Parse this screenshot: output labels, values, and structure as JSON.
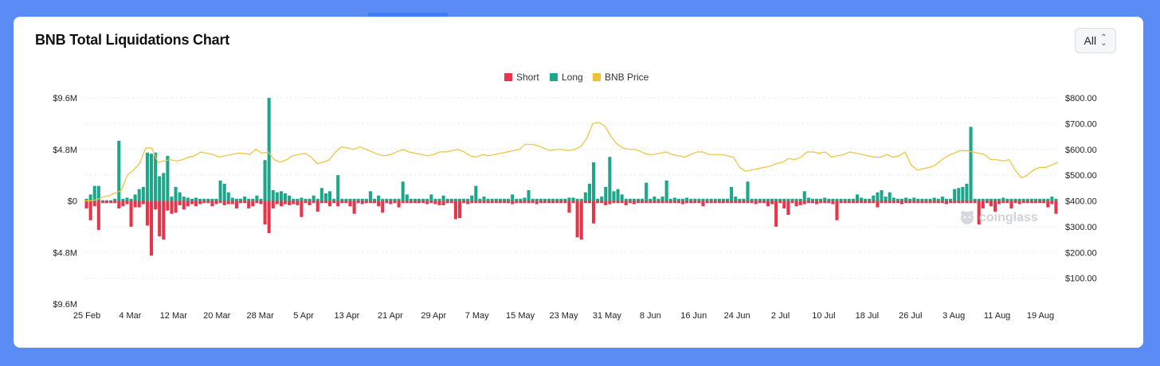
{
  "title": "BNB Total Liquidations Chart",
  "range_selector": {
    "value": "All"
  },
  "watermark": "coinglass",
  "chart_data": {
    "type": "bar",
    "title": "BNB Total Liquidations Chart",
    "legend": {
      "placement": "top-center",
      "entries": [
        "Short",
        "Long",
        "BNB Price"
      ]
    },
    "colors": {
      "short": "#e8344a",
      "long": "#1ea68b",
      "price": "#ecc236"
    },
    "left_axis": {
      "ticks": [
        9.6,
        4.8,
        0,
        -4.8,
        -9.6
      ],
      "tick_labels": [
        "$9.6M",
        "$4.8M",
        "$0",
        "$4.8M",
        "$9.6M"
      ],
      "range": [
        -9.6,
        9.6
      ],
      "unit": "M USD"
    },
    "right_axis": {
      "ticks": [
        800,
        700,
        600,
        500,
        400,
        300,
        200,
        100
      ],
      "tick_labels": [
        "$800.00",
        "$700.00",
        "$600.00",
        "$500.00",
        "$400.00",
        "$300.00",
        "$200.00",
        "$100.00"
      ],
      "range": [
        0,
        800
      ]
    },
    "x_axis": {
      "tick_labels": [
        "25 Feb",
        "4 Mar",
        "12 Mar",
        "20 Mar",
        "28 Mar",
        "5 Apr",
        "13 Apr",
        "21 Apr",
        "29 Apr",
        "7 May",
        "15 May",
        "23 May",
        "31 May",
        "8 Jun",
        "16 Jun",
        "24 Jun",
        "2 Jul",
        "10 Jul",
        "18 Jul",
        "26 Jul",
        "3 Aug",
        "11 Aug",
        "19 Aug"
      ]
    },
    "grid": true,
    "series": [
      {
        "name": "Long",
        "values": [
          0.2,
          0.6,
          1.4,
          1.4,
          0,
          0,
          0,
          0.2,
          5.6,
          0.2,
          0.3,
          0.2,
          0.6,
          1.1,
          1.3,
          4.5,
          4.4,
          4.5,
          2.3,
          2.6,
          4.2,
          0.4,
          1.3,
          0.8,
          0.4,
          0.3,
          0.2,
          0.3,
          0.2,
          0.2,
          0.2,
          0.2,
          0.2,
          1.9,
          1.6,
          0.8,
          0.3,
          0.2,
          0.2,
          0.4,
          0.2,
          0.2,
          0.5,
          0.2,
          3.8,
          9.6,
          1.0,
          0.8,
          0.9,
          0.7,
          0.5,
          0.2,
          0.2,
          0.3,
          0.2,
          0.2,
          0.5,
          0.2,
          1.2,
          0.7,
          0.9,
          0.2,
          2.4,
          0.2,
          0.2,
          0.2,
          0.2,
          0.2,
          0.2,
          0.2,
          0.9,
          0.2,
          0.5,
          0.2,
          0.2,
          0.2,
          0.2,
          0.2,
          1.8,
          0.6,
          0.2,
          0.2,
          0.2,
          0.2,
          0.2,
          0.6,
          0.2,
          0.2,
          0.5,
          0.2,
          0.2,
          0.2,
          0.2,
          0.2,
          0.2,
          0.5,
          1.4,
          0.2,
          0.4,
          0.2,
          0.2,
          0.2,
          0.2,
          0.2,
          0.2,
          0.6,
          0.2,
          0.2,
          0.3,
          1.0,
          0.2,
          0.2,
          0.2,
          0.2,
          0.2,
          0.2,
          0.2,
          0.2,
          0.2,
          0.3,
          0.3,
          0.2,
          0.2,
          0.8,
          1.6,
          3.6,
          0.2,
          0.4,
          1.3,
          4.1,
          0.9,
          1.1,
          0.6,
          0.2,
          0.2,
          0.2,
          0.2,
          0.2,
          1.7,
          0.2,
          0.4,
          0.2,
          0.4,
          1.9,
          0.2,
          0.3,
          0.2,
          0.2,
          0.3,
          0.2,
          0.2,
          0.2,
          0.2,
          0.2,
          0.2,
          0.2,
          0.2,
          0.2,
          0.2,
          1.3,
          0.4,
          0.2,
          0.2,
          1.8,
          0.2,
          0.2,
          0.2,
          0.2,
          0.2,
          0.2,
          0.2,
          0.2,
          0.2,
          0.2,
          0.2,
          0.2,
          0.2,
          0.9,
          0.3,
          0.2,
          0.2,
          0.2,
          0.3,
          0.2,
          0.2,
          0.2,
          0.2,
          0.2,
          0.2,
          0.2,
          0.6,
          0.3,
          0.2,
          0.2,
          0.5,
          0.8,
          1.0,
          0.4,
          0.8,
          0.3,
          0.2,
          0.2,
          0.3,
          0.2,
          0.3,
          0.2,
          0.2,
          0.2,
          0.2,
          0.3,
          0.2,
          0.4,
          0.2,
          0.2,
          1.1,
          1.2,
          1.3,
          1.6,
          6.9,
          0.2,
          0.2,
          0.2,
          0.2,
          0.2,
          0.2,
          0.2,
          0.3,
          0.2,
          0.2,
          0.2,
          0.2,
          0.2,
          0.2,
          0.2,
          0.2,
          0.2,
          0.2,
          0.2,
          0.4,
          0.2
        ]
      },
      {
        "name": "Short",
        "values": [
          -0.7,
          -1.8,
          -0.5,
          -2.7,
          -0.2,
          -0.2,
          -0.2,
          -0.2,
          -0.7,
          -0.5,
          -0.3,
          -2.4,
          -0.6,
          -0.6,
          -0.3,
          -2.3,
          -5.1,
          -0.8,
          -3.3,
          -3.6,
          -0.9,
          -1.2,
          -1.1,
          -0.4,
          -0.8,
          -0.5,
          -0.3,
          -0.5,
          -0.3,
          -0.2,
          -0.2,
          -0.5,
          -0.3,
          -0.2,
          -0.4,
          -0.3,
          -0.3,
          -0.7,
          -0.2,
          -0.2,
          -0.7,
          -0.5,
          -0.2,
          -0.3,
          -2.2,
          -3.0,
          -0.7,
          -0.3,
          -0.5,
          -0.3,
          -0.4,
          -0.3,
          -0.4,
          -1.5,
          -0.2,
          -0.4,
          -0.2,
          -1.0,
          -0.2,
          -0.2,
          -0.5,
          -0.2,
          -0.5,
          -0.2,
          -0.2,
          -0.5,
          -1.2,
          -0.2,
          -0.3,
          -0.2,
          -0.2,
          -0.2,
          -0.5,
          -1.1,
          -0.2,
          -0.3,
          -0.2,
          -0.6,
          -0.2,
          -0.2,
          -0.2,
          -0.2,
          -0.2,
          -0.2,
          -0.3,
          -0.2,
          -0.3,
          -0.4,
          -0.4,
          -0.2,
          -0.2,
          -1.7,
          -1.6,
          -0.2,
          -0.3,
          -0.2,
          -0.2,
          -0.2,
          -0.2,
          -0.2,
          -0.2,
          -0.2,
          -0.2,
          -0.2,
          -0.2,
          -0.3,
          -0.2,
          -0.2,
          -0.2,
          -0.2,
          -0.2,
          -0.3,
          -0.2,
          -0.2,
          -0.2,
          -0.2,
          -0.2,
          -0.2,
          -0.2,
          -1.1,
          -0.2,
          -3.4,
          -3.6,
          -0.2,
          -0.2,
          -2.1,
          -0.2,
          -0.2,
          -0.4,
          -0.3,
          -0.2,
          -0.2,
          -0.2,
          -0.4,
          -0.2,
          -0.3,
          -0.2,
          -0.2,
          -0.2,
          -0.2,
          -0.2,
          -0.2,
          -0.2,
          -0.2,
          -0.2,
          -0.2,
          -0.2,
          -0.3,
          -0.2,
          -0.2,
          -0.2,
          -0.2,
          -0.5,
          -0.2,
          -0.2,
          -0.2,
          -0.2,
          -0.2,
          -0.2,
          -0.2,
          -0.2,
          -0.2,
          -0.2,
          -0.2,
          -0.2,
          -0.3,
          -0.2,
          -0.2,
          -0.5,
          -0.3,
          -2.4,
          -0.2,
          -0.7,
          -1.3,
          -0.2,
          -0.5,
          -0.4,
          -0.3,
          -0.2,
          -0.2,
          -0.3,
          -0.2,
          -0.2,
          -0.2,
          -0.3,
          -1.8,
          -0.2,
          -0.2,
          -0.2,
          -0.2,
          -0.2,
          -0.2,
          -0.2,
          -0.2,
          -0.2,
          -0.6,
          -0.2,
          -0.2,
          -0.2,
          -0.2,
          -0.2,
          -0.3,
          -0.2,
          -0.2,
          -0.2,
          -0.2,
          -0.2,
          -0.2,
          -0.2,
          -0.2,
          -0.2,
          -0.2,
          -0.3,
          -0.2,
          -0.2,
          -0.2,
          -0.2,
          -0.2,
          -0.2,
          -0.2,
          -2.2,
          -0.7,
          -0.2,
          -0.5,
          -1.0,
          -0.3,
          -0.2,
          -0.2,
          -0.7,
          -0.2,
          -0.3,
          -0.2,
          -0.2,
          -0.2,
          -0.2,
          -0.2,
          -0.2,
          -0.6,
          -0.3,
          -1.2,
          -0.4,
          -0.3,
          -0.2,
          -0.2,
          -0.3
        ]
      },
      {
        "name": "BNB Price",
        "values": [
          400,
          400,
          405,
          415,
          420,
          430,
          440,
          500,
          520,
          545,
          605,
          605,
          550,
          555,
          560,
          555,
          560,
          570,
          575,
          590,
          585,
          580,
          570,
          575,
          580,
          585,
          585,
          580,
          600,
          585,
          590,
          560,
          550,
          560,
          575,
          580,
          585,
          570,
          545,
          550,
          560,
          590,
          610,
          605,
          600,
          610,
          600,
          590,
          580,
          575,
          580,
          590,
          600,
          590,
          585,
          580,
          575,
          580,
          590,
          590,
          595,
          600,
          590,
          575,
          570,
          580,
          575,
          580,
          585,
          590,
          595,
          600,
          620,
          620,
          615,
          605,
          595,
          600,
          600,
          595,
          600,
          610,
          640,
          700,
          705,
          690,
          650,
          620,
          605,
          600,
          600,
          590,
          580,
          580,
          585,
          590,
          580,
          575,
          570,
          580,
          590,
          590,
          580,
          580,
          580,
          575,
          570,
          530,
          515,
          520,
          525,
          530,
          535,
          545,
          550,
          565,
          560,
          570,
          590,
          590,
          585,
          590,
          570,
          575,
          580,
          590,
          585,
          580,
          575,
          570,
          570,
          580,
          570,
          575,
          590,
          540,
          520,
          525,
          530,
          540,
          560,
          575,
          585,
          595,
          595,
          590,
          585,
          580,
          560,
          560,
          555,
          560,
          520,
          490,
          500,
          520,
          530,
          530,
          540,
          550
        ]
      }
    ]
  }
}
